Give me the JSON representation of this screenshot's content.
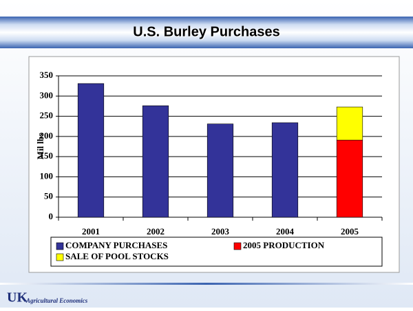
{
  "chart_data": {
    "type": "bar",
    "stacked": true,
    "title": "U.S. Burley Purchases",
    "y_label": "Mil lbs",
    "categories": [
      "2001",
      "2002",
      "2003",
      "2004",
      "2005"
    ],
    "series": [
      {
        "name": "COMPANY PURCHASES",
        "color": "#333399",
        "values": [
          331,
          276,
          231,
          234,
          null
        ]
      },
      {
        "name": "2005 PRODUCTION",
        "color": "#ff0000",
        "values": [
          null,
          null,
          null,
          null,
          191
        ]
      },
      {
        "name": "SALE OF POOL STOCKS",
        "color": "#ffff00",
        "values": [
          null,
          null,
          null,
          null,
          82
        ]
      }
    ],
    "ylim": [
      0,
      350
    ],
    "yticks": [
      0,
      50,
      100,
      150,
      200,
      250,
      300,
      350
    ],
    "grid": true,
    "legend": "bottom"
  },
  "footer": {
    "logo": "UK",
    "department": "Agricultural Economics"
  }
}
